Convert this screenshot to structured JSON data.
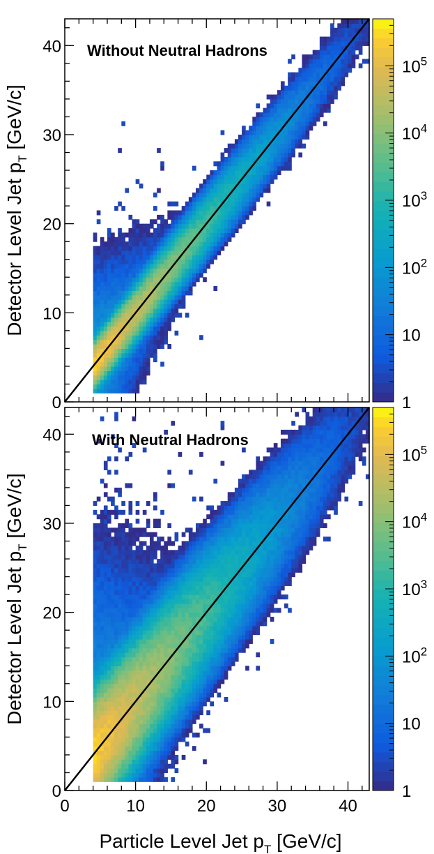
{
  "chart_data": [
    {
      "type": "heatmap",
      "title": "Without Neutral Hadrons",
      "xlabel": "",
      "ylabel": "Detector Level Jet p_T [GeV/c]",
      "xlim": [
        0,
        43
      ],
      "ylim": [
        0,
        43
      ],
      "x_ticks": [
        "",
        "",
        "",
        "",
        ""
      ],
      "y_ticks": [
        "0",
        "10",
        "20",
        "30",
        "40"
      ],
      "color_scale": "log",
      "color_range": [
        1,
        500000
      ],
      "colorbar_ticks": [
        "1",
        "10",
        "10^2",
        "10^3",
        "10^4",
        "10^5"
      ],
      "reference_line": {
        "from": [
          0,
          0
        ],
        "to": [
          43,
          43
        ]
      },
      "distribution": {
        "x_min": 4,
        "bin_width": 0.5,
        "y_min": 1,
        "core_width": 0.7,
        "halo_width": 2.2,
        "low_pt_tail": 4.5,
        "peak_count": 300000,
        "seed": 11
      }
    },
    {
      "type": "heatmap",
      "title": "With Neutral Hadrons",
      "xlabel": "Particle Level Jet p_T [GeV/c]",
      "ylabel": "Detector Level Jet p_T [GeV/c]",
      "xlim": [
        0,
        43
      ],
      "ylim": [
        0,
        43
      ],
      "x_ticks": [
        "0",
        "10",
        "20",
        "30",
        "40"
      ],
      "y_ticks": [
        "0",
        "10",
        "20",
        "30",
        "40"
      ],
      "color_scale": "log",
      "color_range": [
        1,
        500000
      ],
      "colorbar_ticks": [
        "1",
        "10",
        "10^2",
        "10^3",
        "10^4",
        "10^5"
      ],
      "reference_line": {
        "from": [
          0,
          0
        ],
        "to": [
          43,
          43
        ]
      },
      "distribution": {
        "x_min": 4,
        "bin_width": 0.5,
        "y_min": 1,
        "core_width": 2.0,
        "halo_width": 4.5,
        "low_pt_tail": 5,
        "peak_count": 300000,
        "seed": 23
      }
    }
  ]
}
